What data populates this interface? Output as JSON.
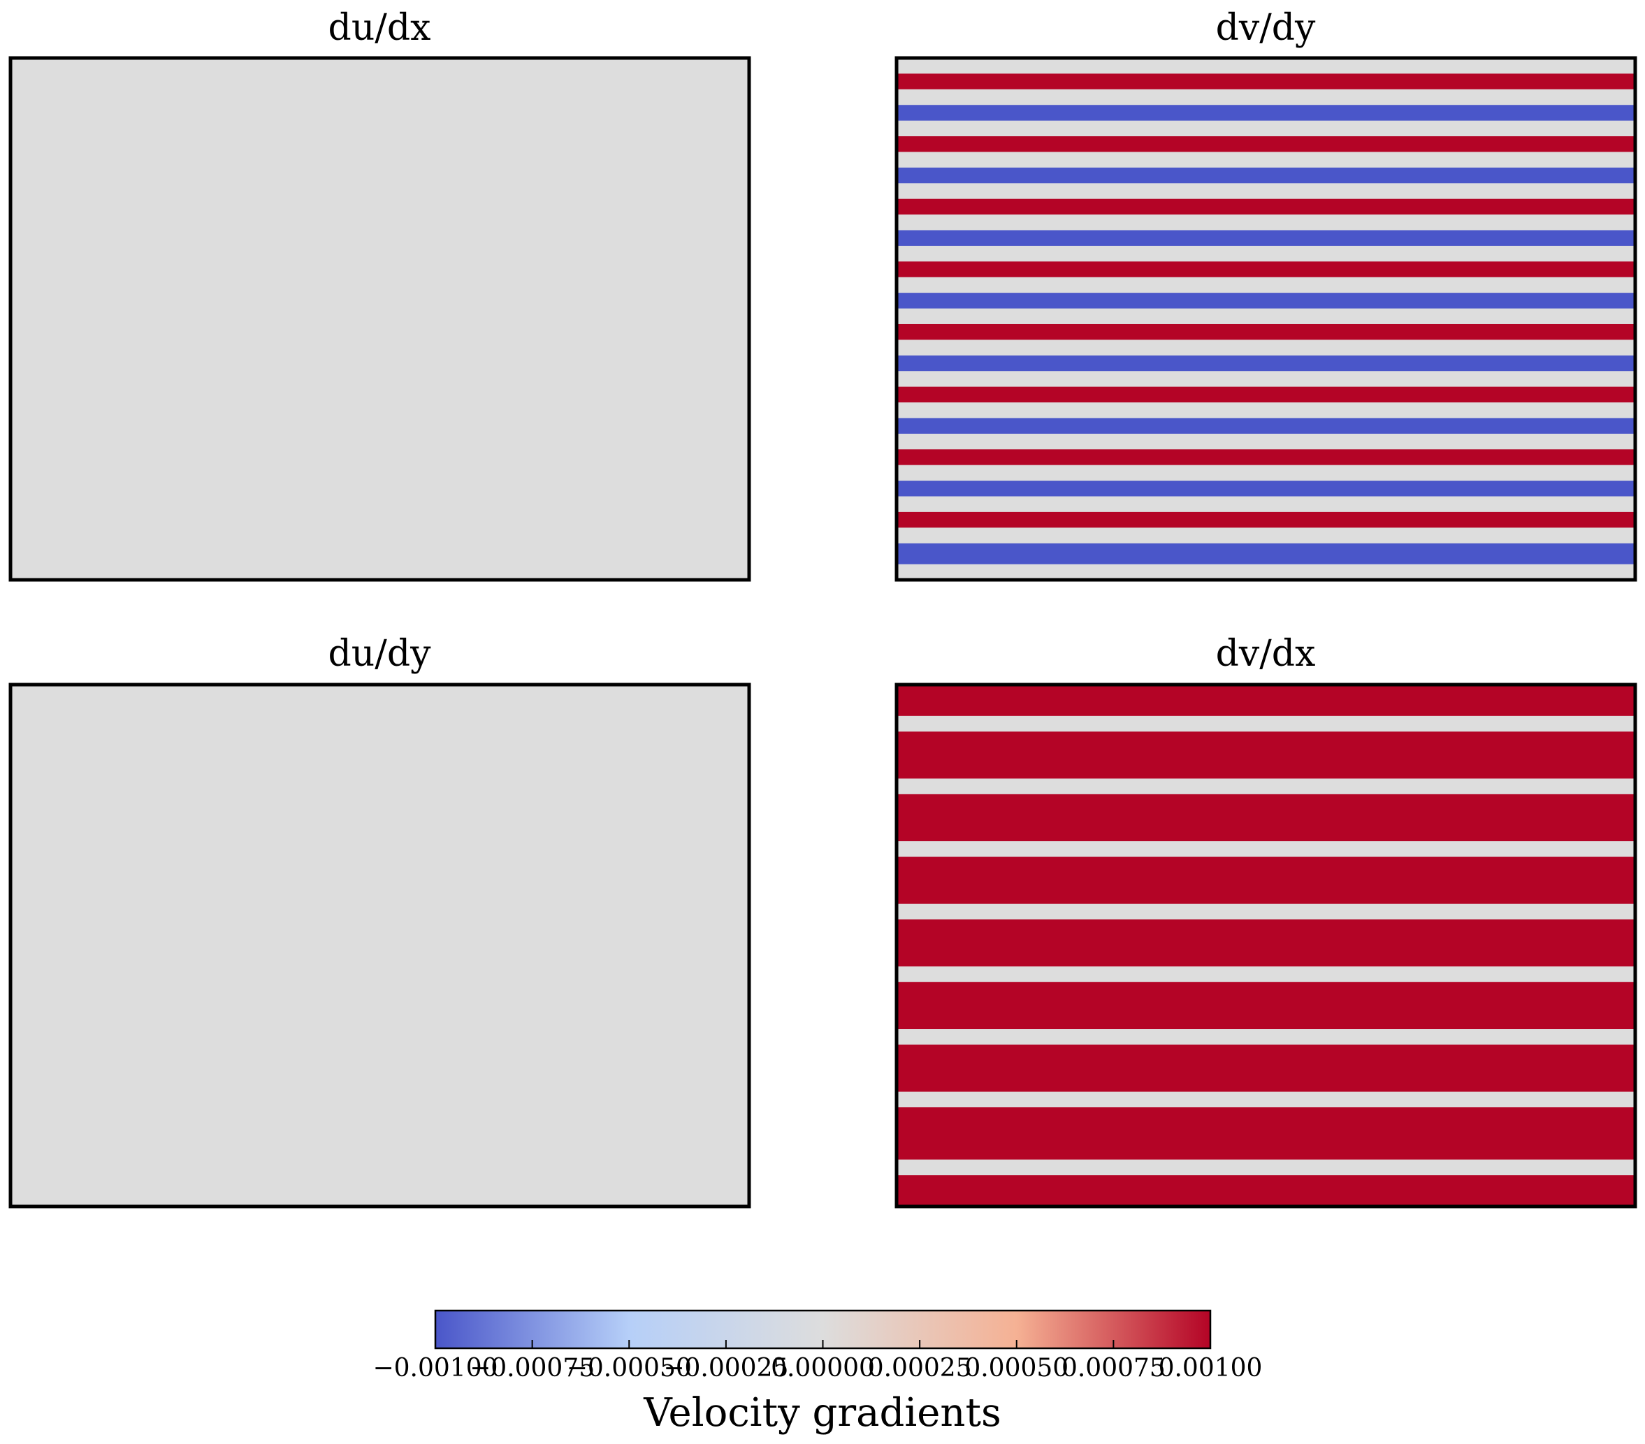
{
  "chart_data": [
    {
      "type": "heatmap",
      "title": "du/dx",
      "colormap": "coolwarm",
      "value_range": [
        -0.001,
        0.001
      ],
      "bands": [
        {
          "from": 0.0,
          "to": 1.0,
          "value": 0.0
        }
      ]
    },
    {
      "type": "heatmap",
      "title": "dv/dy",
      "colormap": "coolwarm",
      "value_range": [
        -0.001,
        0.001
      ],
      "bands": [
        {
          "from": 0.0,
          "to": 0.03,
          "value": 0.0
        },
        {
          "from": 0.03,
          "to": 0.06,
          "value": 0.001
        },
        {
          "from": 0.06,
          "to": 0.09,
          "value": 0.0
        },
        {
          "from": 0.09,
          "to": 0.12,
          "value": -0.001
        },
        {
          "from": 0.12,
          "to": 0.15,
          "value": 0.0
        },
        {
          "from": 0.15,
          "to": 0.18,
          "value": 0.001
        },
        {
          "from": 0.18,
          "to": 0.21,
          "value": 0.0
        },
        {
          "from": 0.21,
          "to": 0.24,
          "value": -0.001
        },
        {
          "from": 0.24,
          "to": 0.27,
          "value": 0.0
        },
        {
          "from": 0.27,
          "to": 0.3,
          "value": 0.001
        },
        {
          "from": 0.3,
          "to": 0.33,
          "value": 0.0
        },
        {
          "from": 0.33,
          "to": 0.36,
          "value": -0.001
        },
        {
          "from": 0.36,
          "to": 0.39,
          "value": 0.0
        },
        {
          "from": 0.39,
          "to": 0.42,
          "value": 0.001
        },
        {
          "from": 0.42,
          "to": 0.45,
          "value": 0.0
        },
        {
          "from": 0.45,
          "to": 0.48,
          "value": -0.001
        },
        {
          "from": 0.48,
          "to": 0.51,
          "value": 0.0
        },
        {
          "from": 0.51,
          "to": 0.54,
          "value": 0.001
        },
        {
          "from": 0.54,
          "to": 0.57,
          "value": 0.0
        },
        {
          "from": 0.57,
          "to": 0.6,
          "value": -0.001
        },
        {
          "from": 0.6,
          "to": 0.63,
          "value": 0.0
        },
        {
          "from": 0.63,
          "to": 0.66,
          "value": 0.001
        },
        {
          "from": 0.66,
          "to": 0.69,
          "value": 0.0
        },
        {
          "from": 0.69,
          "to": 0.72,
          "value": -0.001
        },
        {
          "from": 0.72,
          "to": 0.75,
          "value": 0.0
        },
        {
          "from": 0.75,
          "to": 0.78,
          "value": 0.001
        },
        {
          "from": 0.78,
          "to": 0.81,
          "value": 0.0
        },
        {
          "from": 0.81,
          "to": 0.84,
          "value": -0.001
        },
        {
          "from": 0.84,
          "to": 0.87,
          "value": 0.0
        },
        {
          "from": 0.87,
          "to": 0.9,
          "value": 0.001
        },
        {
          "from": 0.9,
          "to": 0.93,
          "value": 0.0
        },
        {
          "from": 0.93,
          "to": 0.97,
          "value": -0.001
        },
        {
          "from": 0.97,
          "to": 1.0,
          "value": 0.0
        }
      ]
    },
    {
      "type": "heatmap",
      "title": "du/dy",
      "colormap": "coolwarm",
      "value_range": [
        -0.001,
        0.001
      ],
      "bands": [
        {
          "from": 0.0,
          "to": 1.0,
          "value": 0.0
        }
      ]
    },
    {
      "type": "heatmap",
      "title": "dv/dx",
      "colormap": "coolwarm",
      "value_range": [
        -0.001,
        0.001
      ],
      "bands": [
        {
          "from": 0.0,
          "to": 0.06,
          "value": 0.001
        },
        {
          "from": 0.06,
          "to": 0.09,
          "value": 0.0
        },
        {
          "from": 0.09,
          "to": 0.18,
          "value": 0.001
        },
        {
          "from": 0.18,
          "to": 0.21,
          "value": 0.0
        },
        {
          "from": 0.21,
          "to": 0.3,
          "value": 0.001
        },
        {
          "from": 0.3,
          "to": 0.33,
          "value": 0.0
        },
        {
          "from": 0.33,
          "to": 0.42,
          "value": 0.001
        },
        {
          "from": 0.42,
          "to": 0.45,
          "value": 0.0
        },
        {
          "from": 0.45,
          "to": 0.54,
          "value": 0.001
        },
        {
          "from": 0.54,
          "to": 0.57,
          "value": 0.0
        },
        {
          "from": 0.57,
          "to": 0.66,
          "value": 0.001
        },
        {
          "from": 0.66,
          "to": 0.69,
          "value": 0.0
        },
        {
          "from": 0.69,
          "to": 0.78,
          "value": 0.001
        },
        {
          "from": 0.78,
          "to": 0.81,
          "value": 0.0
        },
        {
          "from": 0.81,
          "to": 0.91,
          "value": 0.001
        },
        {
          "from": 0.91,
          "to": 0.94,
          "value": 0.0
        },
        {
          "from": 0.94,
          "to": 1.0,
          "value": 0.001
        }
      ]
    }
  ],
  "colorbar": {
    "label": "Velocity gradients",
    "colormap": "coolwarm",
    "range": [
      -0.001,
      0.001
    ],
    "colors": [
      "#4a56c9",
      "#b6cff8",
      "#dddddd",
      "#f5b194",
      "#b40426"
    ],
    "ticks": [
      {
        "value": -0.001,
        "label": "−0.00100"
      },
      {
        "value": -0.00075,
        "label": "−0.00075"
      },
      {
        "value": -0.0005,
        "label": "−0.00050"
      },
      {
        "value": -0.00025,
        "label": "−0.00025"
      },
      {
        "value": 0.0,
        "label": "0.00000"
      },
      {
        "value": 0.00025,
        "label": "0.00025"
      },
      {
        "value": 0.0005,
        "label": "0.00050"
      },
      {
        "value": 0.00075,
        "label": "0.00075"
      },
      {
        "value": 0.001,
        "label": "0.00100"
      }
    ]
  }
}
